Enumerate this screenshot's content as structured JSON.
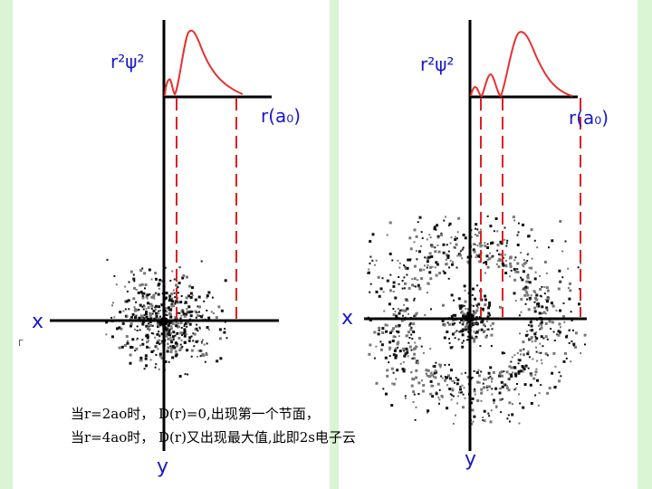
{
  "colors": {
    "background": "#ffffff",
    "green_band": "#d9f5d3",
    "axis": "#000000",
    "curve": "#e83030",
    "dashed": "#e02020",
    "label": "#1a18c8",
    "dots_dark": "#111111",
    "dots_gray": "#777777"
  },
  "left_panel": {
    "ylabel": "r²ψ²",
    "rlabel": "r(a₀)",
    "xaxis": "x",
    "yaxis": "y"
  },
  "right_panel": {
    "ylabel": "r²ψ²",
    "rlabel": "r(a₀)",
    "xaxis": "x",
    "yaxis": "y"
  },
  "captions": {
    "line1": "当r=2ao时， D(r)=0,出现第一个节面，",
    "line2": "当r=4ao时， D(r)又出现最大值,此即2s电子云"
  },
  "margin_mark": "Γ"
}
